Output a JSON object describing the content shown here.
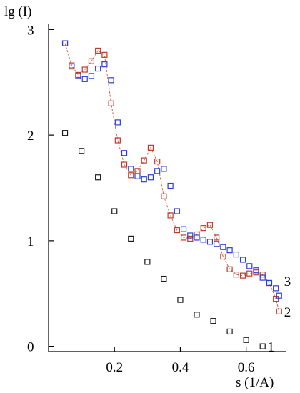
{
  "chart_data": {
    "type": "scatter",
    "title": "",
    "ylabel": "lg (I)",
    "xlabel": "s (1/A)",
    "xlim": [
      0.0,
      0.72
    ],
    "ylim": [
      -0.05,
      3.05
    ],
    "x_ticks": [
      {
        "value": 0.2,
        "label": "0.2"
      },
      {
        "value": 0.4,
        "label": "0.4"
      },
      {
        "value": 0.6,
        "label": "0.6"
      }
    ],
    "y_ticks": [
      {
        "value": 0,
        "label": "0"
      },
      {
        "value": 1,
        "label": "1"
      },
      {
        "value": 2,
        "label": "2"
      },
      {
        "value": 3,
        "label": "3"
      }
    ],
    "grid": false,
    "legend": "none",
    "marker": "open-square",
    "series": [
      {
        "name": "1",
        "color": "#1a1a1a",
        "connect": false,
        "x": [
          0.05,
          0.1,
          0.15,
          0.2,
          0.25,
          0.3,
          0.35,
          0.4,
          0.45,
          0.5,
          0.55,
          0.6,
          0.65
        ],
        "y": [
          2.02,
          1.85,
          1.6,
          1.28,
          1.02,
          0.8,
          0.64,
          0.44,
          0.3,
          0.24,
          0.14,
          0.06,
          0.0
        ]
      },
      {
        "name": "2",
        "color": "#c0392b",
        "connect": true,
        "x": [
          0.05,
          0.07,
          0.09,
          0.11,
          0.13,
          0.15,
          0.17,
          0.19,
          0.21,
          0.23,
          0.25,
          0.27,
          0.29,
          0.31,
          0.33,
          0.35,
          0.37,
          0.39,
          0.41,
          0.43,
          0.45,
          0.47,
          0.49,
          0.51,
          0.53,
          0.55,
          0.57,
          0.59,
          0.61,
          0.63,
          0.65,
          0.67,
          0.69,
          0.7
        ],
        "y": [
          2.87,
          2.66,
          2.57,
          2.62,
          2.7,
          2.8,
          2.76,
          2.3,
          1.95,
          1.72,
          1.62,
          1.66,
          1.76,
          1.88,
          1.75,
          1.42,
          1.24,
          1.1,
          1.03,
          1.02,
          1.06,
          1.12,
          1.15,
          1.03,
          0.85,
          0.73,
          0.68,
          0.67,
          0.69,
          0.7,
          0.68,
          0.6,
          0.45,
          0.33
        ]
      },
      {
        "name": "3",
        "color": "#2b3ed6",
        "connect": false,
        "x": [
          0.05,
          0.07,
          0.09,
          0.11,
          0.13,
          0.15,
          0.17,
          0.19,
          0.21,
          0.23,
          0.25,
          0.27,
          0.29,
          0.31,
          0.33,
          0.35,
          0.37,
          0.39,
          0.41,
          0.43,
          0.45,
          0.47,
          0.49,
          0.51,
          0.53,
          0.55,
          0.57,
          0.59,
          0.61,
          0.63,
          0.65,
          0.67,
          0.69,
          0.7
        ],
        "y": [
          2.87,
          2.65,
          2.56,
          2.53,
          2.56,
          2.63,
          2.67,
          2.52,
          2.12,
          1.83,
          1.68,
          1.61,
          1.58,
          1.6,
          1.66,
          1.68,
          1.52,
          1.28,
          1.11,
          1.05,
          1.03,
          1.01,
          0.99,
          0.97,
          0.94,
          0.91,
          0.87,
          0.82,
          0.76,
          0.72,
          0.65,
          0.6,
          0.55,
          0.48
        ]
      }
    ],
    "annotations": [
      {
        "text": "1",
        "series": "1",
        "x": 0.665,
        "y": 0.0
      },
      {
        "text": "2",
        "series": "2",
        "x": 0.715,
        "y": 0.33
      },
      {
        "text": "3",
        "series": "3",
        "x": 0.715,
        "y": 0.62
      }
    ]
  }
}
